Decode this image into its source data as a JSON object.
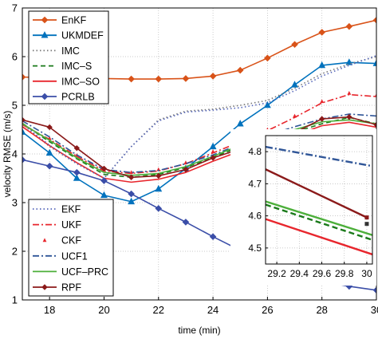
{
  "chart_data": {
    "type": "line",
    "xlabel": "time (min)",
    "ylabel": "velocity RMSE (m/s)",
    "xlim": [
      17,
      30
    ],
    "ylim": [
      1,
      7
    ],
    "xticks": [
      18,
      20,
      22,
      24,
      26,
      28,
      30
    ],
    "yticks": [
      1,
      2,
      3,
      4,
      5,
      6,
      7
    ],
    "grid": true,
    "x": [
      17,
      18,
      19,
      20,
      21,
      22,
      23,
      24,
      25,
      26,
      27,
      28,
      29,
      30
    ],
    "series": [
      {
        "name": "EnKF",
        "color": "#d95319",
        "dash": "",
        "marker": "diamond",
        "values": [
          5.58,
          5.57,
          5.56,
          5.55,
          5.54,
          5.54,
          5.55,
          5.6,
          5.72,
          5.97,
          6.25,
          6.5,
          6.62,
          6.75
        ]
      },
      {
        "name": "UKMDEF",
        "color": "#0072bd",
        "dash": "",
        "marker": "triangle",
        "values": [
          4.45,
          4.02,
          3.5,
          3.15,
          3.02,
          3.28,
          3.7,
          4.15,
          4.62,
          5.0,
          5.42,
          5.82,
          5.88,
          5.86
        ]
      },
      {
        "name": "IMC",
        "color": "#777777",
        "dash": "1.5,3",
        "marker": "",
        "values": [
          4.62,
          4.15,
          3.8,
          3.5,
          4.15,
          4.7,
          4.88,
          4.92,
          5.0,
          5.1,
          5.35,
          5.65,
          5.85,
          6.0
        ]
      },
      {
        "name": "IMC-S",
        "color": "#1a7a1a",
        "dash": "6,4",
        "marker": "",
        "values": [
          4.63,
          4.25,
          3.9,
          3.58,
          3.52,
          3.58,
          3.72,
          3.93,
          4.15,
          4.3,
          4.45,
          4.62,
          4.75,
          4.62
        ]
      },
      {
        "name": "IMC-SO",
        "color": "#e8262d",
        "dash": "",
        "marker": "",
        "values": [
          4.56,
          4.17,
          3.82,
          3.5,
          3.42,
          3.48,
          3.62,
          3.85,
          4.06,
          4.22,
          4.38,
          4.58,
          4.65,
          4.55
        ]
      },
      {
        "name": "PCRLB",
        "color": "#3b4ea8",
        "dash": "",
        "marker": "diamond",
        "values": [
          3.88,
          3.75,
          3.62,
          3.45,
          3.18,
          2.88,
          2.6,
          2.3,
          2.02,
          1.75,
          1.55,
          1.38,
          1.28,
          1.2
        ]
      },
      {
        "name": "EKF",
        "color": "#5566bb",
        "dash": "1.5,3",
        "marker": "",
        "values": [
          4.62,
          4.18,
          3.8,
          3.5,
          4.15,
          4.68,
          4.86,
          4.9,
          4.95,
          5.05,
          5.3,
          5.6,
          5.82,
          6.02
        ]
      },
      {
        "name": "UKF",
        "color": "#e8262d",
        "dash": "8,3,2,3",
        "marker": "",
        "values": [
          4.6,
          4.3,
          3.95,
          3.65,
          3.6,
          3.65,
          3.8,
          4.02,
          4.25,
          4.48,
          4.75,
          5.05,
          5.22,
          5.18
        ]
      },
      {
        "name": "CKF",
        "color": "#e8262d",
        "dash": "",
        "marker": "triangle-small",
        "line": false,
        "values": [
          4.62,
          4.32,
          3.97,
          3.67,
          3.62,
          3.68,
          3.82,
          4.05,
          4.28,
          4.5,
          4.78,
          5.08,
          5.25,
          5.2
        ]
      },
      {
        "name": "UCF1",
        "color": "#2f5597",
        "dash": "8,3,2,3",
        "marker": "",
        "values": [
          4.68,
          4.35,
          3.98,
          3.68,
          3.62,
          3.66,
          3.8,
          3.98,
          4.2,
          4.38,
          4.56,
          4.72,
          4.82,
          4.78
        ]
      },
      {
        "name": "UCF–PRC",
        "color": "#4caf3a",
        "dash": "",
        "marker": "",
        "values": [
          4.62,
          4.28,
          3.92,
          3.62,
          3.56,
          3.6,
          3.74,
          3.95,
          4.18,
          4.34,
          4.5,
          4.66,
          4.7,
          4.62
        ]
      },
      {
        "name": "RPF",
        "color": "#8b1a1a",
        "dash": "",
        "marker": "diamond-small",
        "values": [
          4.7,
          4.55,
          4.12,
          3.7,
          3.52,
          3.55,
          3.68,
          3.92,
          4.1,
          4.28,
          4.44,
          4.72,
          4.76,
          4.6
        ]
      }
    ],
    "legend_top": [
      "EnKF",
      "UKMDEF",
      "IMC",
      "IMC–S",
      "IMC–SO",
      "PCRLB"
    ],
    "legend_bottom": [
      "EKF",
      "UKF",
      "CKF",
      "UCF1",
      "UCF–PRC",
      "RPF"
    ],
    "legend_top_placement": "top-left",
    "legend_bottom_placement": "bottom-left",
    "inset": {
      "placement": "right",
      "xlim": [
        29.1,
        30.05
      ],
      "ylim": [
        4.45,
        4.85
      ],
      "xticks": [
        "29.2",
        "29.4",
        "29.6",
        "29.8",
        "30"
      ],
      "yticks": [
        "4.5",
        "4.6",
        "4.7",
        "4.8"
      ],
      "grid": true,
      "lines": [
        {
          "name": "UCF1",
          "color": "#2f5597",
          "dash": "9,3,2,3",
          "x": [
            29.1,
            30.05
          ],
          "values": [
            4.815,
            4.755
          ]
        },
        {
          "name": "RPF",
          "color": "#8b1a1a",
          "dash": "",
          "x": [
            29.1,
            30.0
          ],
          "values": [
            4.745,
            4.595
          ]
        },
        {
          "name": "UCF–PRC",
          "color": "#4caf3a",
          "dash": "",
          "x": [
            29.1,
            30.05
          ],
          "values": [
            4.645,
            4.54
          ]
        },
        {
          "name": "IMC-S",
          "color": "#1a7a1a",
          "dash": "7,4",
          "x": [
            29.1,
            30.05
          ],
          "values": [
            4.635,
            4.525
          ]
        },
        {
          "name": "IMC-SO",
          "color": "#e8262d",
          "dash": "",
          "x": [
            29.1,
            30.05
          ],
          "values": [
            4.59,
            4.48
          ]
        }
      ],
      "markers": [
        {
          "name": "RPF",
          "color": "#8b1a1a",
          "x": 30.0,
          "y": 4.595
        },
        {
          "name": "IMC",
          "color": "#333333",
          "x": 30.0,
          "y": 4.575
        }
      ]
    }
  }
}
